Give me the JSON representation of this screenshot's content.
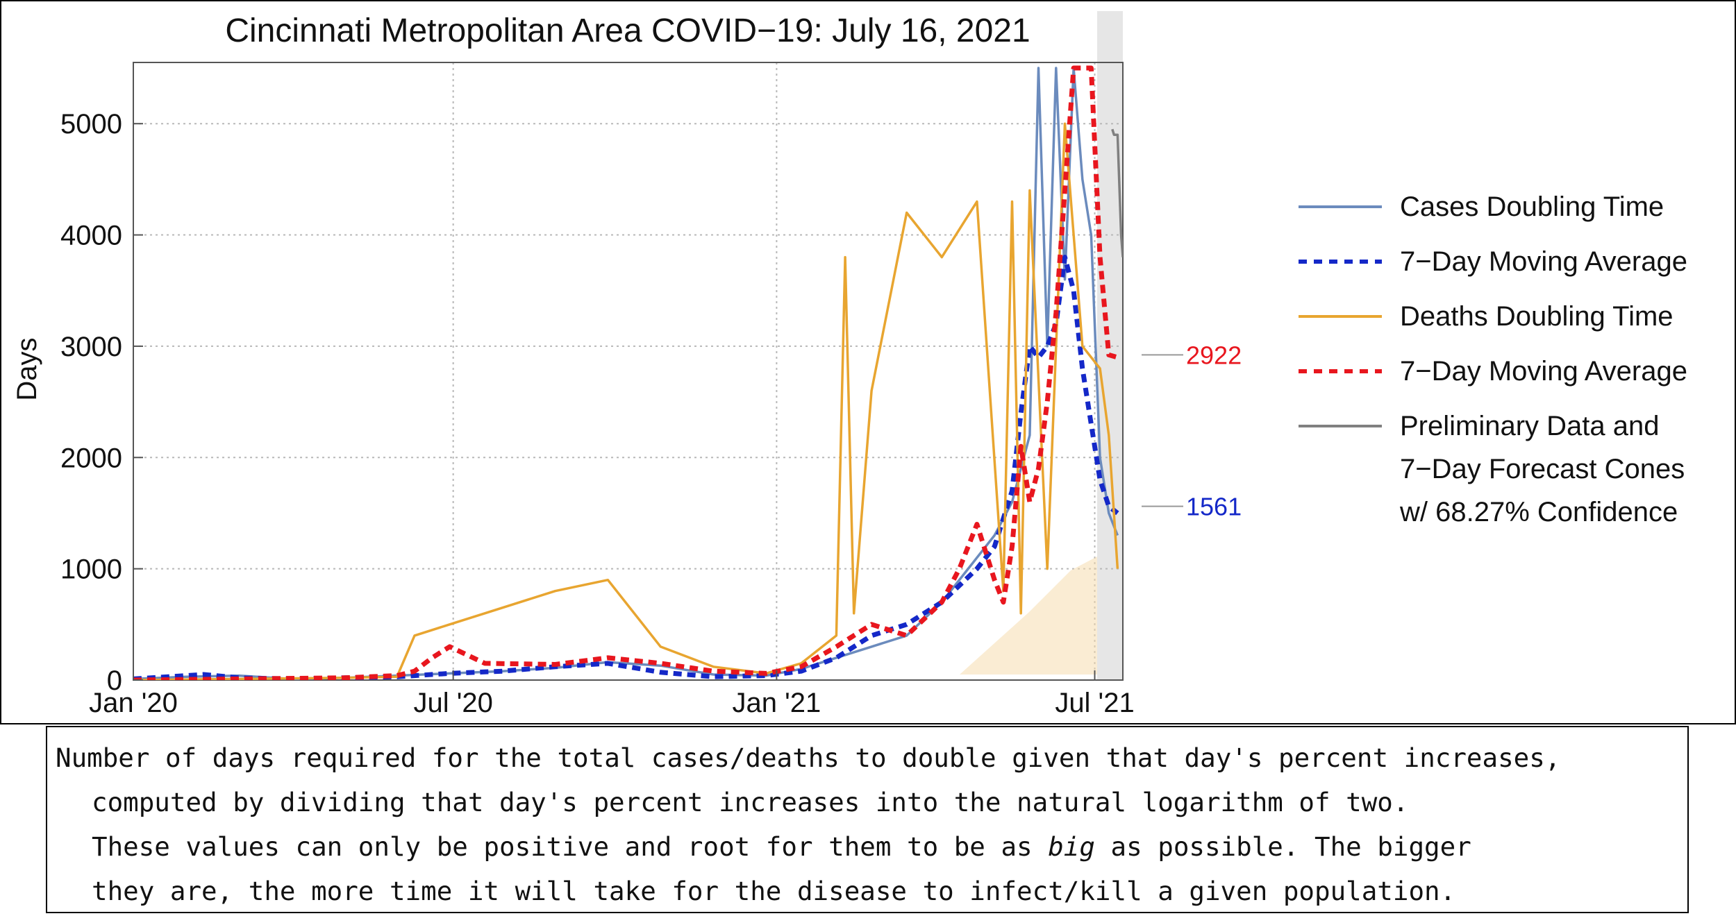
{
  "chart_data": {
    "type": "line",
    "title": "Cincinnati Metropolitan Area COVID−19: July 16, 2021",
    "xlabel": "",
    "ylabel": "Days",
    "ylim": [
      0,
      5550
    ],
    "yticks": [
      0,
      1000,
      2000,
      3000,
      4000,
      5000
    ],
    "ytick_labels": [
      "0",
      "1000",
      "2000",
      "3000",
      "4000",
      "5000"
    ],
    "xlim_days": [
      0,
      563
    ],
    "xticks_days": [
      0,
      182,
      366,
      547
    ],
    "xtick_labels": [
      "Jan '20",
      "Jul '20",
      "Jan '21",
      "Jul '21"
    ],
    "grid": true,
    "legend_position": "right",
    "series": [
      {
        "name": "Cases Doubling Time",
        "style": "solid",
        "color": "#6b8bbd",
        "x": [
          0,
          30,
          60,
          90,
          120,
          150,
          180,
          210,
          240,
          270,
          300,
          330,
          360,
          380,
          400,
          420,
          440,
          460,
          480,
          490,
          500,
          510,
          515,
          520,
          525,
          530,
          535,
          540,
          545,
          550,
          555,
          560
        ],
        "y": [
          10,
          30,
          40,
          10,
          20,
          40,
          60,
          80,
          110,
          160,
          130,
          50,
          40,
          100,
          200,
          300,
          400,
          700,
          1100,
          1300,
          1600,
          2200,
          5500,
          3000,
          5500,
          3600,
          5500,
          4500,
          4000,
          2000,
          1500,
          1300
        ]
      },
      {
        "name": "7−Day Moving Average",
        "style": "dashed",
        "color": "#1428c8",
        "x": [
          0,
          20,
          40,
          60,
          90,
          120,
          150,
          180,
          210,
          240,
          270,
          300,
          330,
          360,
          380,
          400,
          420,
          440,
          460,
          480,
          490,
          500,
          505,
          510,
          515,
          520,
          525,
          530,
          535,
          540,
          545,
          550,
          555,
          560
        ],
        "y": [
          10,
          30,
          50,
          20,
          10,
          20,
          30,
          60,
          80,
          120,
          150,
          70,
          30,
          40,
          80,
          200,
          400,
          500,
          700,
          1000,
          1200,
          1700,
          2400,
          3000,
          2900,
          3000,
          3200,
          3800,
          3500,
          2800,
          2300,
          1800,
          1561,
          1500
        ]
      },
      {
        "name": "Deaths Doubling Time",
        "style": "solid",
        "color": "#e8a530",
        "x": [
          0,
          60,
          120,
          150,
          160,
          180,
          200,
          240,
          270,
          300,
          330,
          360,
          380,
          400,
          405,
          410,
          420,
          440,
          460,
          480,
          495,
          500,
          505,
          510,
          520,
          530,
          540,
          550,
          555,
          560
        ],
        "y": [
          0,
          10,
          20,
          30,
          400,
          500,
          600,
          800,
          900,
          300,
          120,
          60,
          150,
          400,
          3800,
          600,
          2600,
          4200,
          3800,
          4300,
          800,
          4300,
          600,
          4400,
          1000,
          5000,
          3000,
          2800,
          2200,
          1000
        ]
      },
      {
        "name": "7−Day Moving Average",
        "style": "dashed",
        "color": "#e8161e",
        "x": [
          0,
          60,
          120,
          150,
          160,
          170,
          180,
          200,
          240,
          270,
          300,
          330,
          360,
          380,
          400,
          420,
          440,
          460,
          470,
          480,
          490,
          495,
          500,
          505,
          510,
          515,
          520,
          525,
          530,
          535,
          540,
          545,
          550,
          555,
          560
        ],
        "y": [
          0,
          10,
          20,
          40,
          80,
          200,
          300,
          150,
          140,
          200,
          150,
          80,
          60,
          120,
          300,
          500,
          400,
          700,
          1000,
          1400,
          900,
          700,
          1200,
          2100,
          1600,
          1900,
          2500,
          3300,
          4400,
          5500,
          5500,
          5500,
          3800,
          2922,
          2900
        ]
      },
      {
        "name": "Preliminary Data and 7−Day Forecast Cones w/ 68.27% Confidence",
        "style": "solid",
        "color": "#808080",
        "x": [
          557,
          558,
          560,
          562,
          563
        ],
        "y": [
          4950,
          4900,
          4900,
          4000,
          3800
        ]
      }
    ],
    "annotations": [
      {
        "label": "2922",
        "value": 2922,
        "color": "#e8161e"
      },
      {
        "label": "1561",
        "value": 1561,
        "color": "#1428c8"
      }
    ]
  },
  "legend": {
    "items": [
      {
        "label": "Cases Doubling Time",
        "color": "#6b8bbd",
        "style": "solid"
      },
      {
        "label": "7−Day Moving Average",
        "color": "#1428c8",
        "style": "dashed"
      },
      {
        "label": "Deaths Doubling Time",
        "color": "#e8a530",
        "style": "solid"
      },
      {
        "label": "7−Day Moving Average",
        "color": "#e8161e",
        "style": "dashed"
      },
      {
        "label": "Preliminary Data and",
        "color": "#808080",
        "style": "solid"
      }
    ],
    "continuation": [
      "7−Day Forecast Cones",
      "w/ 68.27% Confidence"
    ]
  },
  "caption": {
    "line1": "Number of days required for the total cases/deaths to double given that day's percent increases,",
    "line2": "computed by dividing that day's percent increases into the natural logarithm of two.",
    "line3_before": "These values can only be positive and root for them to be as ",
    "line3_em": "big",
    "line3_after": " as possible. The bigger",
    "line4": "they are, the more time it will take for the disease to infect/kill a given population."
  }
}
